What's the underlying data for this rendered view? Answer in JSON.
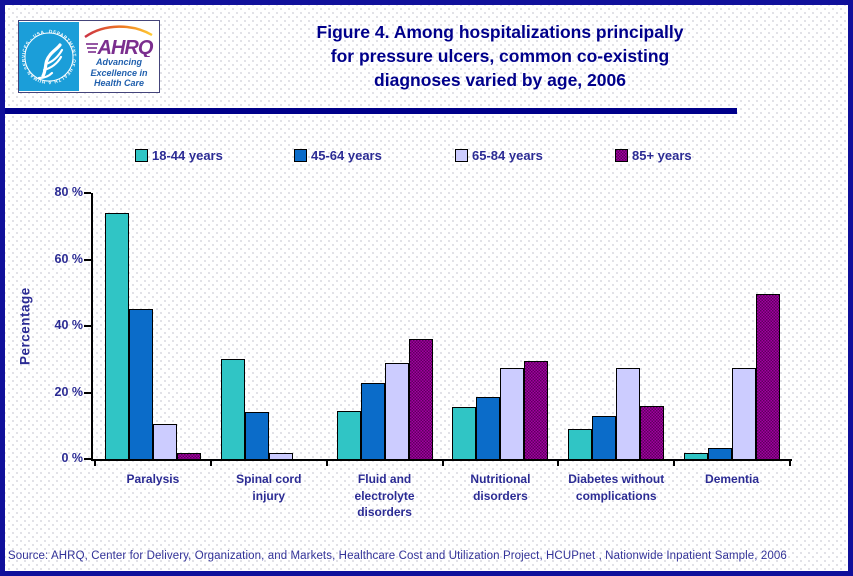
{
  "header": {
    "title": "Figure 4. Among hospitalizations principally\nfor pressure ulcers, common co-existing\ndiagnoses varied by age, 2006",
    "logo": {
      "org_abbr": "AHRQ",
      "tagline": "Advancing\nExcellence in\nHealth Care",
      "seal_text": "DEPARTMENT OF HEALTH & HUMAN SERVICES - USA"
    }
  },
  "chart_data": {
    "type": "bar",
    "title": "Figure 4. Among hospitalizations principally for pressure ulcers, common co-existing diagnoses varied by age, 2006",
    "xlabel": "",
    "ylabel": "Percentage",
    "ylim": [
      0,
      80
    ],
    "yticks": [
      0,
      20,
      40,
      60,
      80
    ],
    "ytick_labels": [
      "0 %",
      "20 %",
      "40 %",
      "60 %",
      "80 %"
    ],
    "grid": false,
    "legend_position": "top",
    "categories": [
      "Paralysis",
      "Spinal cord\ninjury",
      "Fluid and\nelectrolyte\ndisorders",
      "Nutritional\ndisorders",
      "Diabetes without\ncomplications",
      "Dementia"
    ],
    "series": [
      {
        "name": "18-44 years",
        "color": "#30c5c5",
        "pattern": "solid",
        "values": [
          74,
          30,
          14.5,
          15.5,
          9,
          1.8
        ]
      },
      {
        "name": "45-64 years",
        "color": "#0b6cc9",
        "pattern": "solid",
        "values": [
          45,
          14,
          23,
          18.5,
          13,
          3.3
        ]
      },
      {
        "name": "65-84 years",
        "color": "#ccccff",
        "pattern": "solid",
        "values": [
          10.5,
          1.8,
          29,
          27.5,
          27.5,
          27.5
        ]
      },
      {
        "name": "85+ years",
        "color": "#800080",
        "pattern": "checker",
        "values": [
          1.8,
          0,
          36,
          29.5,
          16,
          49.5
        ]
      }
    ]
  },
  "source": {
    "text": "Source: AHRQ, Center for Delivery, Organization, and Markets, Healthcare Cost and Utilization Project, HCUPnet , Nationwide Inpatient Sample, 2006"
  },
  "colors": {
    "frame_navy": "#10109b",
    "title_navy": "#00008b",
    "label_navy": "#2b2b94",
    "teal": "#30c5c5",
    "blue": "#0b6cc9",
    "lavender": "#ccccff",
    "purple": "#800080",
    "seal_cyan": "#1b9ed9",
    "ahrq_purple": "#7b2e8e",
    "tagline_blue": "#1f5fad"
  }
}
